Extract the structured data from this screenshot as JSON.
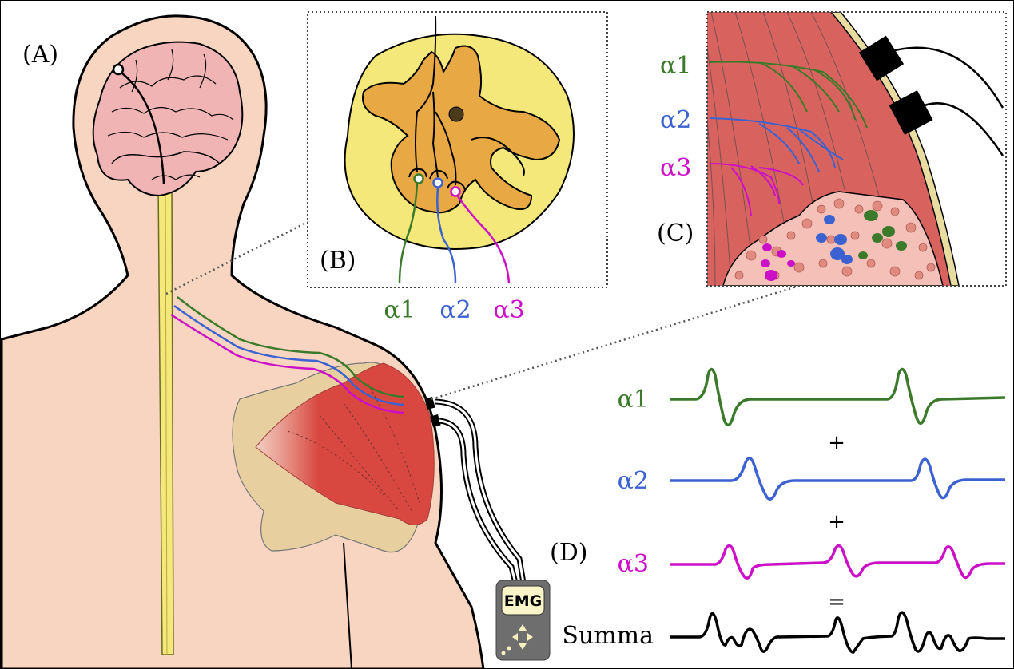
{
  "panels": {
    "a": "(A)",
    "b": "(B)",
    "c": "(C)",
    "d": "(D)"
  },
  "neurons": [
    "α1",
    "α2",
    "α3"
  ],
  "signals": {
    "plus1": "+",
    "plus2": "+",
    "equals": "=",
    "sum": "Summa"
  },
  "device": {
    "label": "EMG"
  },
  "colors": {
    "a1": "#3a7a2a",
    "a2": "#3b62d0",
    "a3": "#cc10c8",
    "skin": "#f8d5c0",
    "spinal_cord": "#f5e87a",
    "gray_matter": "#e8a844",
    "brain": "#f0b4b4",
    "muscle": "#d8635e",
    "shoulder_muscle": "#d84840",
    "bone": "#e8cfa0"
  }
}
